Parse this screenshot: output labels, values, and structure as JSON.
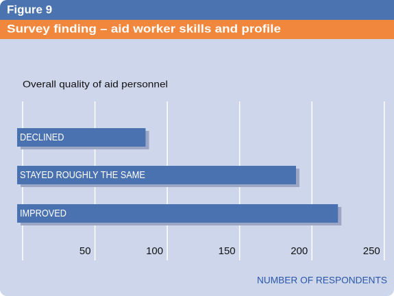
{
  "header": {
    "figure": "Figure 9",
    "title": "Survey finding – aid worker skills and profile"
  },
  "chart_data": {
    "type": "bar",
    "orientation": "horizontal",
    "subtitle": "Overall quality of aid personnel",
    "categories": [
      "DECLINED",
      "STAYED ROUGHLY THE SAME",
      "IMPROVED"
    ],
    "values": [
      85,
      189,
      218
    ],
    "color": "#4a72b0",
    "xlim": [
      0,
      252
    ],
    "xticks": [
      50,
      100,
      150,
      200,
      250
    ],
    "grid": true,
    "x_label": "NUMBER OF RESPONDENTS"
  }
}
